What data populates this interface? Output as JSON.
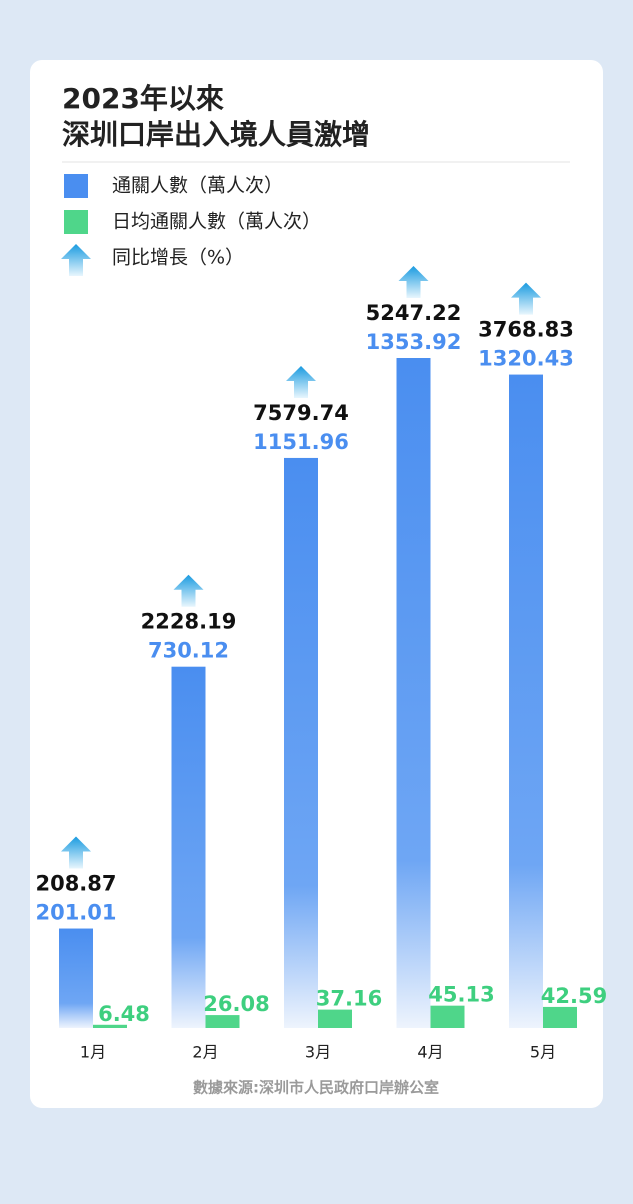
{
  "chart_data": {
    "type": "bar",
    "title": [
      "2023年以來",
      "深圳口岸出入境人員激增"
    ],
    "categories": [
      "1月",
      "2月",
      "3月",
      "4月",
      "5月"
    ],
    "series": [
      {
        "name": "通關人數（萬人次）",
        "color": "#4a8ef0",
        "values": [
          201.01,
          730.12,
          1151.96,
          1353.92,
          1320.43
        ]
      },
      {
        "name": "日均通關人數（萬人次）",
        "color": "#4fd68a",
        "values": [
          6.48,
          26.08,
          37.16,
          45.13,
          42.59
        ]
      },
      {
        "name": "同比增長（%）",
        "color": "#1a9be0",
        "values": [
          208.87,
          2228.19,
          7579.74,
          5247.22,
          3768.83
        ]
      }
    ],
    "source": "數據來源:深圳市人民政府口岸辦公室"
  }
}
